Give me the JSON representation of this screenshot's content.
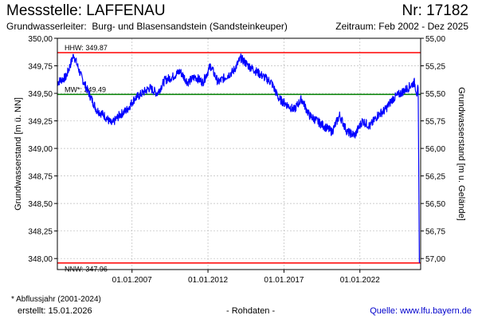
{
  "header": {
    "title": "Messstelle: LAFFENAU",
    "number": "Nr: 17182",
    "aquifer_label": "Grundwasserleiter:",
    "aquifer": "Burg- und Blasensandstein (Sandsteinkeuper)",
    "period": "Zeitraum: Feb 2002 - Dez 2025"
  },
  "footer": {
    "footnote": "* Abflussjahr (2001-2024)",
    "created": "erstellt:  15.01.2026",
    "raw": "- Rohdaten -",
    "source": "Quelle: www.lfu.bayern.de"
  },
  "chart_data": {
    "type": "line",
    "ylabel": "Grundwasserstand [m ü. NN]",
    "ylabel_right": "Grundwasserstand [m u. Gelände]",
    "ylim": [
      347.9,
      350.0
    ],
    "xlim": [
      "2002-02-01",
      "2025-12-31"
    ],
    "yticks": [
      "348,00",
      "348,25",
      "348,50",
      "348,75",
      "349,00",
      "349,25",
      "349,50",
      "349,75",
      "350,00"
    ],
    "yticks_right": [
      "57,00",
      "56,75",
      "56,50",
      "56,25",
      "56,00",
      "55,75",
      "55,50",
      "55,25",
      "55,00"
    ],
    "xticks": [
      "01.01.2007",
      "01.01.2012",
      "01.01.2017",
      "01.01.2022"
    ],
    "grid": true,
    "colors": {
      "series": "#0000ff",
      "extreme": "#ff0000",
      "mean": "#008000"
    },
    "reference_lines": [
      {
        "label": "HHW: 349.87",
        "value": 349.87
      },
      {
        "label": "MW*: 349.49",
        "value": 349.49
      },
      {
        "label": "NNW: 347.96",
        "value": 347.96
      }
    ],
    "series": [
      {
        "x": [
          "2002-02-01",
          "2002-09-01",
          "2003-03-01",
          "2003-09-01",
          "2004-03-01",
          "2004-09-01",
          "2005-03-01",
          "2005-09-01",
          "2006-03-01",
          "2006-09-01",
          "2007-03-01",
          "2007-09-01",
          "2008-03-01",
          "2008-09-01",
          "2009-03-01",
          "2009-09-01",
          "2010-03-01",
          "2010-09-01",
          "2011-03-01",
          "2011-09-01",
          "2012-03-01",
          "2012-09-01",
          "2013-03-01",
          "2013-09-01",
          "2014-03-01",
          "2014-09-01",
          "2015-03-01",
          "2015-09-01",
          "2016-03-01",
          "2016-09-01",
          "2017-03-01",
          "2017-09-01",
          "2018-03-01",
          "2018-09-01",
          "2019-03-01",
          "2019-09-01",
          "2020-03-01",
          "2020-09-01",
          "2021-03-01",
          "2021-09-01",
          "2022-03-01",
          "2022-09-01",
          "2023-03-01",
          "2023-09-01",
          "2024-03-01",
          "2024-09-01",
          "2025-03-01",
          "2025-08-01",
          "2025-10-01",
          "2025-11-01",
          "2025-12-01"
        ],
        "y": [
          349.6,
          349.65,
          349.85,
          349.65,
          349.5,
          349.35,
          349.3,
          349.22,
          349.3,
          349.35,
          349.45,
          349.5,
          349.55,
          349.5,
          349.62,
          349.65,
          349.7,
          349.6,
          349.65,
          349.6,
          349.75,
          349.6,
          349.65,
          349.7,
          349.82,
          349.75,
          349.7,
          349.65,
          349.6,
          349.45,
          349.4,
          349.35,
          349.45,
          349.3,
          349.25,
          349.2,
          349.15,
          349.3,
          349.15,
          349.12,
          349.25,
          349.2,
          349.3,
          349.35,
          349.45,
          349.5,
          349.55,
          349.6,
          349.5,
          349.55,
          347.96
        ]
      }
    ]
  }
}
